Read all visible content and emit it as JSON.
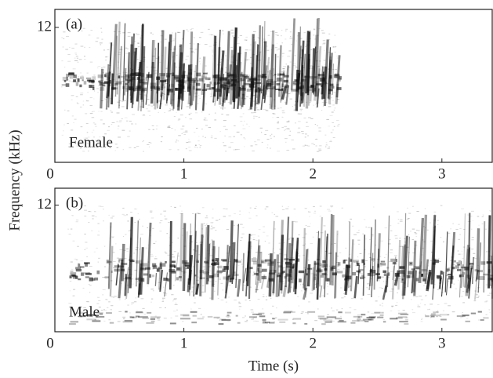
{
  "figure": {
    "ylabel": "Frequency (kHz)",
    "xlabel": "Time (s)"
  },
  "chart_data": [
    {
      "type": "spectrogram",
      "panel_label": "(a)",
      "annotation": "Female",
      "xlim": [
        0,
        3.39
      ],
      "xticks": [
        0,
        1,
        2,
        3
      ],
      "ylim": [
        0,
        13.6
      ],
      "yticks": [
        12
      ]
    },
    {
      "type": "spectrogram",
      "panel_label": "(b)",
      "annotation": "Male",
      "xlim": [
        0,
        3.39
      ],
      "xticks": [
        0,
        1,
        2,
        3
      ],
      "ylim": [
        0,
        13.6
      ],
      "yticks": [
        12
      ]
    }
  ]
}
